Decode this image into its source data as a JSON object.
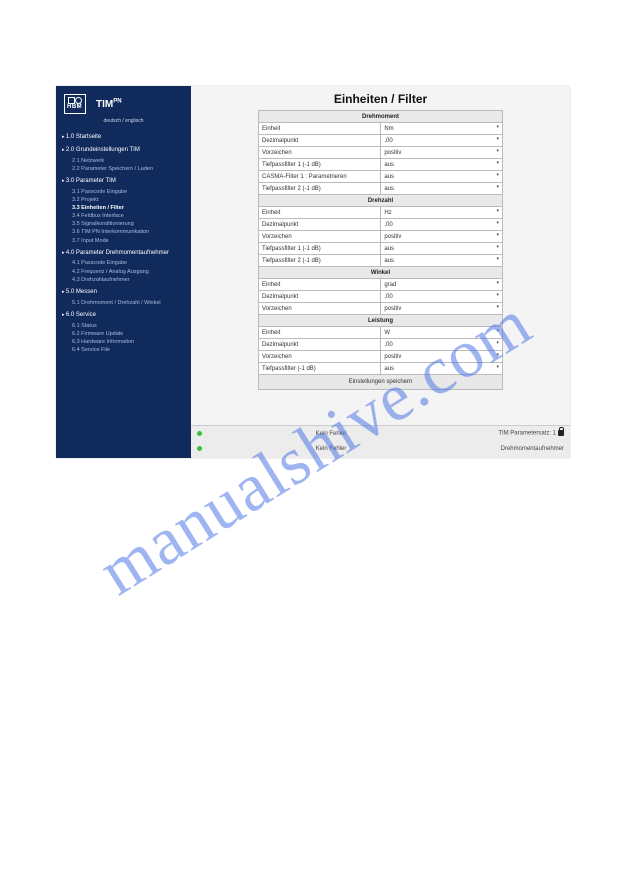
{
  "brand": {
    "name": "TIM",
    "sup": "PN",
    "maker": "HBM"
  },
  "lang_switch": "deutsch / englisch",
  "page_title": "Einheiten / Filter",
  "nav": [
    {
      "label": "1.0 Startseite",
      "sub": []
    },
    {
      "label": "2.0 Grundeinstellungen TIM",
      "sub": [
        "2.1 Netzwerk",
        "2.2 Parameter Speichern / Laden"
      ]
    },
    {
      "label": "3.0 Parameter TIM",
      "sub": [
        "3.1 Passcode Eingabe",
        "3.2 Projekt",
        "3.3 Einheiten / Filter",
        "3.4 Feldbus Interface",
        "3.5 Signalkonditionierung",
        "3.6 TIM PN Interkommunikation",
        "3.7 Input Mode"
      ],
      "active_idx": 2
    },
    {
      "label": "4.0 Parameter Drehmomentaufnehmer",
      "sub": [
        "4.1 Passcode Eingabe",
        "4.2 Frequenz / Analog Ausgang",
        "4.3 Drehzahlaufnehmer"
      ]
    },
    {
      "label": "5.0 Messen",
      "sub": [
        "5.1 Drehmoment / Drehzahl / Winkel"
      ]
    },
    {
      "label": "6.0 Service",
      "sub": [
        "6.1 Status",
        "6.2 Firmware Update",
        "6.3 Hardware Information",
        "6.4 Service File"
      ]
    }
  ],
  "sections": [
    {
      "header": "Drehmoment",
      "rows": [
        [
          "Einheit",
          "Nm"
        ],
        [
          "Dezimalpunkt",
          ",00"
        ],
        [
          "Vorzeichen",
          "positiv"
        ],
        [
          "Tiefpassfilter 1 (-1 dB)",
          "aus"
        ],
        [
          "CASMA-Filter 1 : Parametrieren",
          "aus"
        ],
        [
          "Tiefpassfilter 2 (-1 dB)",
          "aus"
        ]
      ]
    },
    {
      "header": "Drehzahl",
      "rows": [
        [
          "Einheit",
          "Hz"
        ],
        [
          "Dezimalpunkt",
          ",00"
        ],
        [
          "Vorzeichen",
          "positiv"
        ],
        [
          "Tiefpassfilter 1 (-1 dB)",
          "aus"
        ],
        [
          "Tiefpassfilter 2 (-1 dB)",
          "aus"
        ]
      ]
    },
    {
      "header": "Winkel",
      "rows": [
        [
          "Einheit",
          "grad"
        ],
        [
          "Dezimalpunkt",
          ",00"
        ],
        [
          "Vorzeichen",
          "positiv"
        ]
      ]
    },
    {
      "header": "Leistung",
      "rows": [
        [
          "Einheit",
          "W"
        ],
        [
          "Dezimalpunkt",
          ",00"
        ],
        [
          "Vorzeichen",
          "positiv"
        ],
        [
          "Tiefpassfilter (-1 dB)",
          "aus"
        ]
      ]
    }
  ],
  "save_label": "Einstellungen speichern",
  "footer": {
    "dotA_color": "#3bbf3b",
    "msgA": "Kein Fehler",
    "rightA": "TIM Parametersatz: 1",
    "dotB_color": "#3bbf3b",
    "msgB": "Kein Fehler",
    "rightB": "Drehmomentaufnehmer"
  },
  "watermark": "manualshive.com",
  "colors": {
    "sidebar": "#0f2a5b",
    "grid": "#bbbbbb",
    "section_bg": "#e9e9e9"
  }
}
